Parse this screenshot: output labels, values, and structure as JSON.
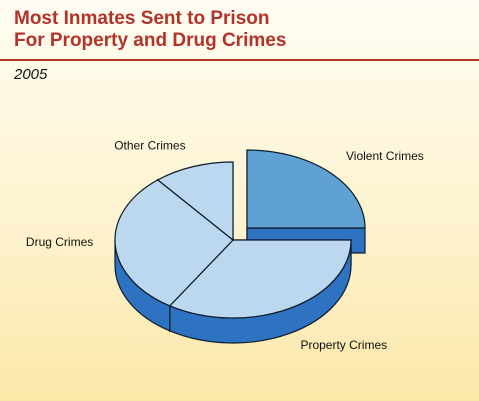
{
  "header": {
    "title_line1": "Most Inmates Sent to Prison",
    "title_line2": "For Property and Drug Crimes",
    "subtitle": "2005"
  },
  "colors": {
    "title": "#b3332a",
    "exploded_slice": "#5fa1d3",
    "slice_fill": "#bcd8ee",
    "side": "#2e73c2",
    "outline": "#0d1b2a"
  },
  "chart_data": {
    "type": "pie",
    "style": "3d-exploded",
    "title": "Most Inmates Sent to Prison For Property and Drug Crimes",
    "subtitle": "2005",
    "slices": [
      {
        "label": "Violent Crimes",
        "value": 25,
        "exploded": true
      },
      {
        "label": "Property Crimes",
        "value": 34,
        "exploded": false
      },
      {
        "label": "Drug Crimes",
        "value": 30,
        "exploded": false
      },
      {
        "label": "Other Crimes",
        "value": 11,
        "exploded": false
      }
    ]
  }
}
